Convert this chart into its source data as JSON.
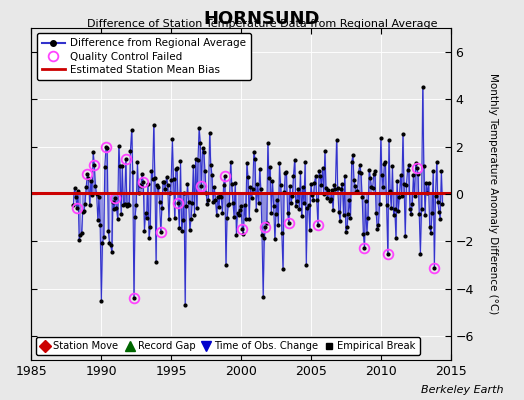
{
  "title": "HORNSUND",
  "subtitle": "Difference of Station Temperature Data from Regional Average",
  "ylabel": "Monthly Temperature Anomaly Difference (°C)",
  "xlim": [
    1985,
    2015
  ],
  "ylim": [
    -7,
    7
  ],
  "yticks": [
    -6,
    -4,
    -2,
    0,
    2,
    4,
    6
  ],
  "xticks": [
    1985,
    1990,
    1995,
    2000,
    2005,
    2010,
    2015
  ],
  "mean_bias": 0.05,
  "background_color": "#e8e8e8",
  "plot_bg_color": "#e8e8e8",
  "line_color": "#3333cc",
  "fill_color": "#aaaaff",
  "bias_color": "#cc0000",
  "qc_color": "#ff44ff",
  "watermark": "Berkeley Earth"
}
